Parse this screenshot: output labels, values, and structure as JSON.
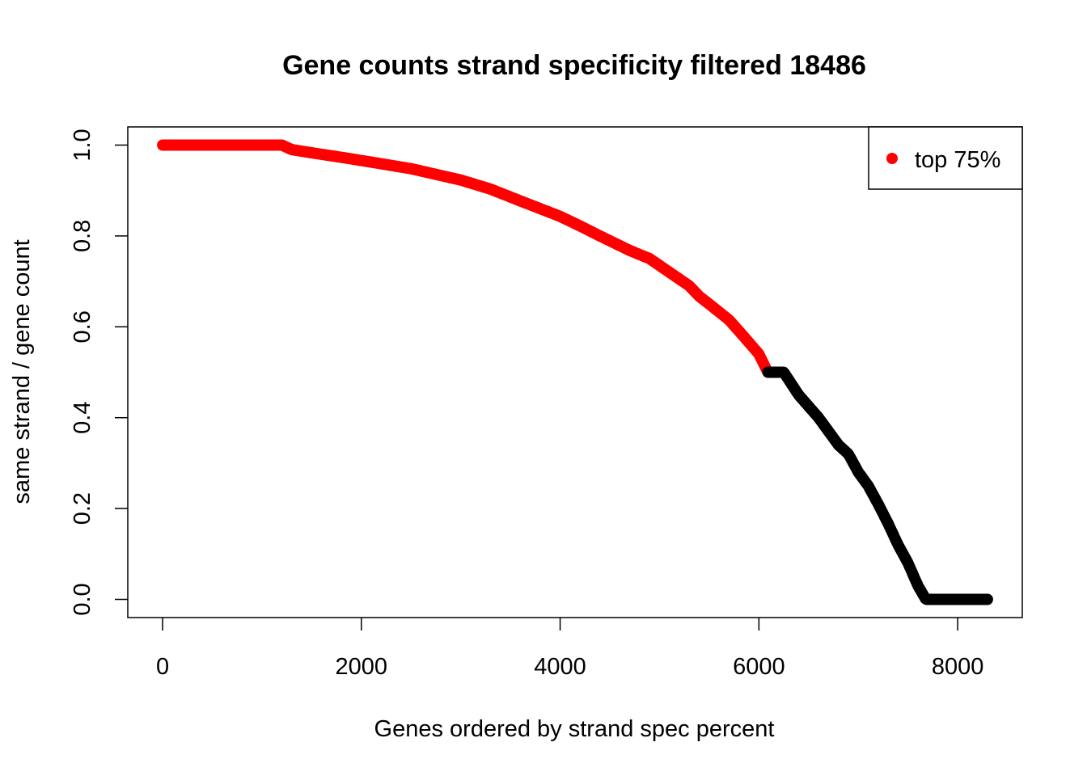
{
  "chart_data": {
    "type": "scatter",
    "title": "Gene counts strand specificity filtered 18486",
    "xlabel": "Genes ordered by strand spec percent",
    "ylabel": "same strand / gene count",
    "xlim": [
      -350,
      8650
    ],
    "ylim": [
      -0.04,
      1.04
    ],
    "x_ticks": [
      0,
      2000,
      4000,
      6000,
      8000
    ],
    "y_ticks": [
      0.0,
      0.2,
      0.4,
      0.6,
      0.8,
      1.0
    ],
    "x_tick_labels": [
      "0",
      "2000",
      "4000",
      "6000",
      "8000"
    ],
    "y_tick_labels": [
      "0.0",
      "0.2",
      "0.4",
      "0.6",
      "0.8",
      "1.0"
    ],
    "grid": false,
    "legend": {
      "position": "top-right",
      "entries": [
        {
          "label": "top 75%",
          "color": "#ff0000"
        }
      ]
    },
    "series": [
      {
        "name": "top 75%",
        "color": "#ff0000",
        "x_start": 1,
        "x_end": 6090,
        "points": [
          [
            0,
            1.0
          ],
          [
            1200,
            1.0
          ],
          [
            1300,
            0.99
          ],
          [
            1500,
            0.983
          ],
          [
            1800,
            0.973
          ],
          [
            2000,
            0.966
          ],
          [
            2500,
            0.948
          ],
          [
            3000,
            0.923
          ],
          [
            3300,
            0.903
          ],
          [
            3600,
            0.877
          ],
          [
            4000,
            0.843
          ],
          [
            4200,
            0.822
          ],
          [
            4400,
            0.8
          ],
          [
            4700,
            0.768
          ],
          [
            4900,
            0.75
          ],
          [
            5100,
            0.72
          ],
          [
            5300,
            0.69
          ],
          [
            5400,
            0.667
          ],
          [
            5500,
            0.65
          ],
          [
            5700,
            0.615
          ],
          [
            5850,
            0.578
          ],
          [
            6000,
            0.54
          ],
          [
            6090,
            0.5
          ]
        ]
      },
      {
        "name": "",
        "color": "#000000",
        "x_start": 6091,
        "x_end": 8300,
        "points": [
          [
            6090,
            0.5
          ],
          [
            6250,
            0.5
          ],
          [
            6400,
            0.45
          ],
          [
            6600,
            0.4
          ],
          [
            6800,
            0.34
          ],
          [
            6900,
            0.32
          ],
          [
            7000,
            0.28
          ],
          [
            7100,
            0.25
          ],
          [
            7200,
            0.21
          ],
          [
            7300,
            0.167
          ],
          [
            7400,
            0.12
          ],
          [
            7500,
            0.08
          ],
          [
            7600,
            0.03
          ],
          [
            7680,
            0.0
          ],
          [
            8300,
            0.0
          ]
        ]
      }
    ]
  }
}
